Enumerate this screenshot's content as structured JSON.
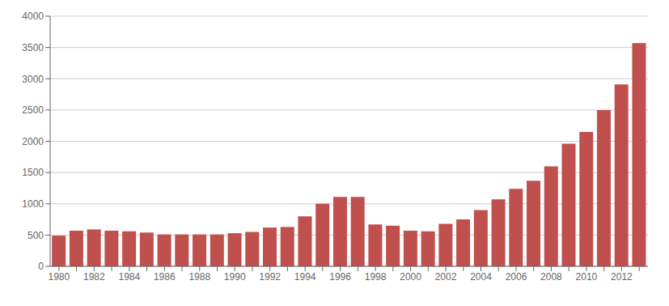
{
  "chart_data": {
    "type": "bar",
    "categories": [
      "1980",
      null,
      "1982",
      null,
      "1984",
      null,
      "1986",
      null,
      "1988",
      null,
      "1990",
      null,
      "1992",
      null,
      "1994",
      null,
      "1996",
      null,
      "1998",
      null,
      "2000",
      null,
      "2002",
      null,
      "2004",
      null,
      "2006",
      null,
      "2008",
      null,
      "2010",
      null,
      "2012",
      null
    ],
    "values": [
      490,
      570,
      590,
      570,
      560,
      540,
      510,
      510,
      510,
      510,
      530,
      550,
      620,
      630,
      800,
      1000,
      1110,
      1110,
      670,
      650,
      570,
      560,
      680,
      750,
      900,
      1070,
      1240,
      1370,
      1600,
      1960,
      2150,
      2500,
      2910,
      3570
    ],
    "color": "#c0504d",
    "ylim": [
      0,
      4000
    ],
    "yticks": [
      0,
      500,
      1000,
      1500,
      2000,
      2500,
      3000,
      3500,
      4000
    ],
    "grid": true
  }
}
